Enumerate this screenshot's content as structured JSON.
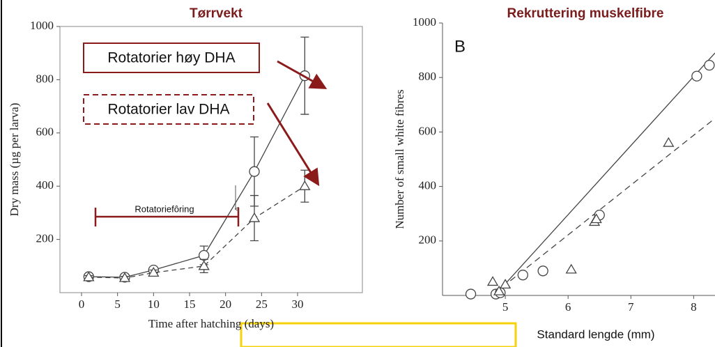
{
  "chart_data": [
    {
      "type": "line",
      "title": "Tørrvekt",
      "xlabel": "Time after hatching (days)",
      "ylabel": "Dry mass (µg per larva)",
      "x": [
        1,
        6,
        10,
        17,
        24,
        31
      ],
      "series": [
        {
          "color": "#444",
          "marker": "circle",
          "dash": false,
          "values": [
            60,
            58,
            85,
            140,
            455,
            815
          ],
          "errors": [
            6,
            6,
            10,
            35,
            130,
            145
          ]
        },
        {
          "color": "#444",
          "marker": "triangle",
          "dash": true,
          "values": [
            58,
            55,
            75,
            100,
            280,
            400
          ],
          "errors": [
            6,
            6,
            10,
            25,
            85,
            60
          ]
        }
      ],
      "annotations": [
        "Rotatorier høy DHA",
        "Rotatorier lav DHA",
        "Rotatoriefôring"
      ],
      "xlim": [
        -3,
        39
      ],
      "ylim": [
        0,
        1000
      ],
      "xticks": [
        0,
        5,
        10,
        15,
        20,
        25,
        30
      ],
      "yticks": [
        200,
        400,
        600,
        800,
        1000
      ]
    },
    {
      "type": "scatter",
      "title": "Rekruttering muskelfibre",
      "panel": "B",
      "xlabel": "Standard lengde (mm)",
      "ylabel": "Number of small white fibres",
      "series": [
        {
          "color": "#444",
          "marker": "circle",
          "x": [
            4.45,
            4.85,
            4.92,
            5.28,
            5.6,
            6.5,
            8.05,
            8.25
          ],
          "values": [
            5,
            5,
            10,
            75,
            90,
            295,
            805,
            845
          ]
        },
        {
          "color": "#444",
          "marker": "triangle",
          "x": [
            4.8,
            4.9,
            5.0,
            6.05,
            6.42,
            6.45,
            7.6
          ],
          "values": [
            50,
            15,
            40,
            95,
            270,
            280,
            560
          ]
        }
      ],
      "lines": [
        {
          "color": "#444",
          "dash": false,
          "x": [
            4.95,
            8.34
          ],
          "values": [
            30,
            890
          ]
        },
        {
          "color": "#444",
          "dash": true,
          "x": [
            4.95,
            8.34
          ],
          "values": [
            30,
            650
          ]
        }
      ],
      "xlim": [
        4,
        8.34
      ],
      "ylim": [
        0,
        1000
      ],
      "xticks": [
        5,
        6,
        7,
        8
      ],
      "yticks": [
        200,
        400,
        600,
        800,
        1000
      ]
    }
  ]
}
